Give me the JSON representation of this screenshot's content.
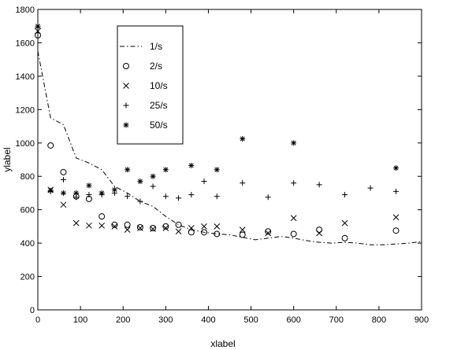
{
  "chart_data": {
    "type": "scatter",
    "xlabel": "xlabel",
    "ylabel": "ylabel",
    "xlim": [
      0,
      900
    ],
    "ylim": [
      0,
      1800
    ],
    "x_ticks": [
      0,
      100,
      200,
      300,
      400,
      500,
      600,
      700,
      800,
      900
    ],
    "y_ticks": [
      0,
      200,
      400,
      600,
      800,
      1000,
      1200,
      1400,
      1600,
      1800
    ],
    "grid": false,
    "legend_position": "top-left",
    "series": [
      {
        "name": "1/s",
        "marker": "dash-dot-line",
        "x": [
          0,
          30,
          60,
          90,
          120,
          150,
          180,
          210,
          240,
          270,
          300,
          330,
          360,
          390,
          420,
          450,
          480,
          510,
          540,
          570,
          600,
          630,
          660,
          690,
          720,
          750,
          780,
          810,
          840,
          870,
          900
        ],
        "y": [
          1550,
          1150,
          1110,
          910,
          880,
          840,
          740,
          700,
          650,
          620,
          560,
          510,
          480,
          465,
          455,
          450,
          435,
          420,
          430,
          440,
          430,
          415,
          405,
          400,
          405,
          400,
          390,
          390,
          395,
          400,
          410
        ]
      },
      {
        "name": "2/s",
        "marker": "circle",
        "x": [
          0,
          30,
          60,
          90,
          120,
          150,
          180,
          210,
          240,
          270,
          300,
          330,
          360,
          390,
          420,
          480,
          540,
          600,
          660,
          720,
          840
        ],
        "y": [
          1645,
          985,
          825,
          680,
          665,
          560,
          510,
          510,
          495,
          490,
          500,
          510,
          465,
          465,
          455,
          450,
          470,
          455,
          480,
          430,
          475
        ]
      },
      {
        "name": "10/s",
        "marker": "x",
        "x": [
          0,
          30,
          60,
          90,
          120,
          150,
          180,
          210,
          240,
          270,
          300,
          330,
          360,
          390,
          420,
          480,
          540,
          600,
          660,
          720,
          840
        ],
        "y": [
          1670,
          720,
          630,
          520,
          505,
          505,
          500,
          480,
          490,
          485,
          490,
          470,
          490,
          500,
          500,
          480,
          460,
          550,
          460,
          520,
          555
        ]
      },
      {
        "name": "25/s",
        "marker": "plus",
        "x": [
          0,
          30,
          60,
          90,
          120,
          150,
          180,
          210,
          240,
          270,
          300,
          330,
          360,
          390,
          420,
          480,
          540,
          600,
          660,
          720,
          780,
          840
        ],
        "y": [
          1690,
          710,
          780,
          675,
          690,
          690,
          700,
          680,
          650,
          740,
          680,
          670,
          690,
          770,
          680,
          760,
          675,
          760,
          750,
          690,
          730,
          710
        ]
      },
      {
        "name": "50/s",
        "marker": "asterisk",
        "x": [
          0,
          30,
          60,
          90,
          120,
          150,
          180,
          210,
          240,
          270,
          300,
          360,
          420,
          480,
          600,
          840
        ],
        "y": [
          1700,
          715,
          700,
          700,
          745,
          700,
          720,
          840,
          770,
          800,
          840,
          865,
          840,
          1025,
          1000,
          850
        ]
      }
    ]
  }
}
